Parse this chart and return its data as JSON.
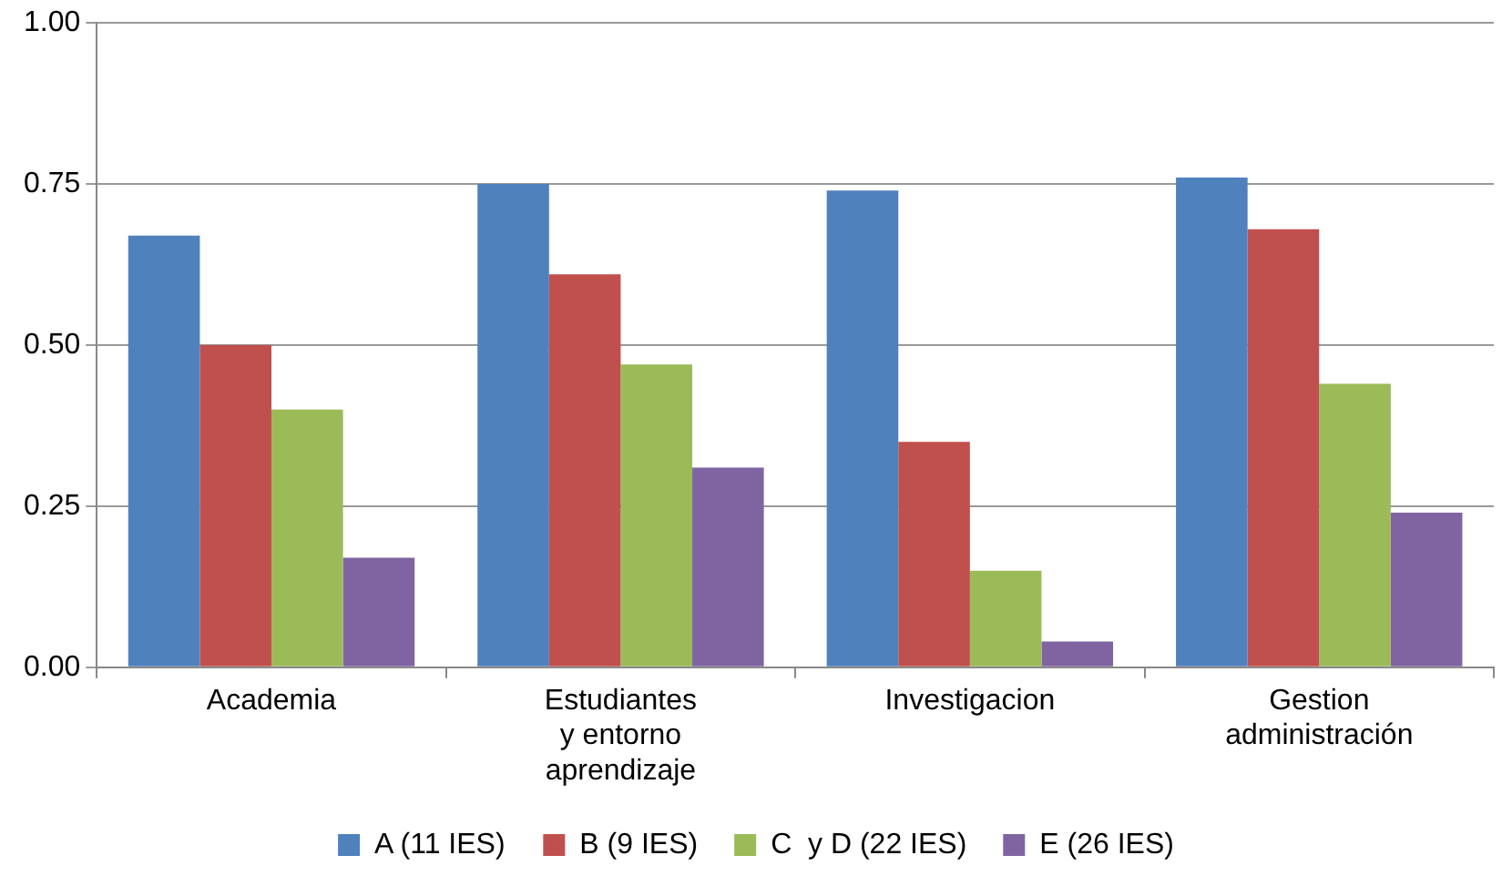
{
  "chart_data": {
    "type": "bar",
    "categories": [
      "Academia",
      "Estudiantes y entorno aprendizaje",
      "Investigacion",
      "Gestion administración"
    ],
    "series": [
      {
        "name": "A (11 IES)",
        "color": "#4f81bd",
        "values": [
          0.67,
          0.75,
          0.74,
          0.76
        ]
      },
      {
        "name": "B (9 IES)",
        "color": "#c0504d",
        "values": [
          0.5,
          0.61,
          0.35,
          0.68
        ]
      },
      {
        "name": "C  y D (22 IES)",
        "color": "#9bbb59",
        "values": [
          0.4,
          0.47,
          0.15,
          0.44
        ]
      },
      {
        "name": "E (26 IES)",
        "color": "#8064a2",
        "values": [
          0.17,
          0.31,
          0.04,
          0.24
        ]
      }
    ],
    "ylim": [
      0,
      1
    ],
    "yticks": [
      {
        "value": 0,
        "label": "0.00"
      },
      {
        "value": 0.25,
        "label": "0.25"
      },
      {
        "value": 0.5,
        "label": "0.50"
      },
      {
        "value": 0.75,
        "label": "0.75"
      },
      {
        "value": 1,
        "label": "1.00"
      }
    ],
    "grid": "y",
    "legend": "bottom"
  }
}
